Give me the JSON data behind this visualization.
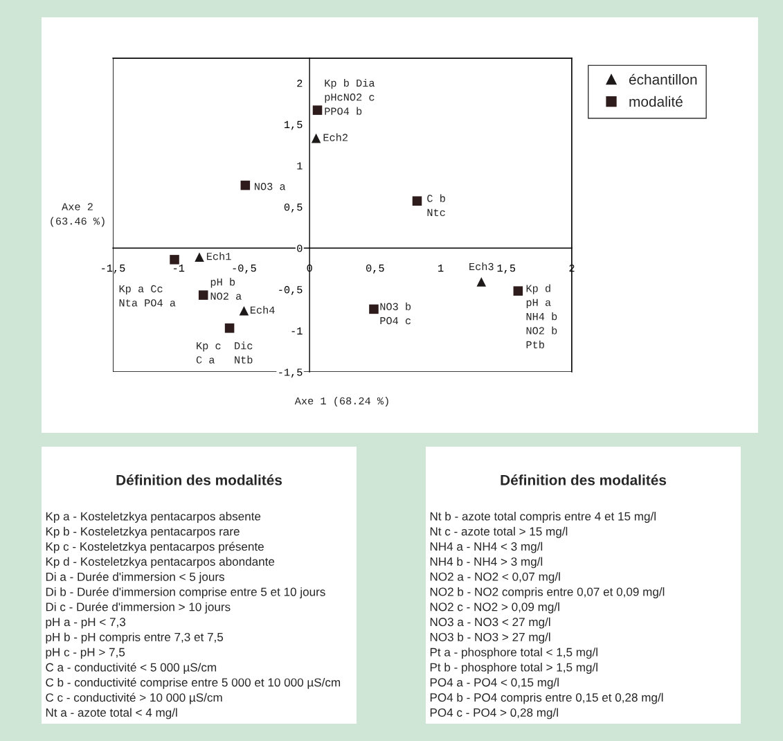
{
  "chart_data": [
    {
      "type": "scatter",
      "xlabel": "Axe 1 (68.24 %)",
      "ylabel": "Axe 2\n(63.46 %)",
      "xlim": [
        -1.5,
        2
      ],
      "ylim": [
        -1.5,
        2.3
      ],
      "xticks": [
        {
          "value": -1.5,
          "label": "-1,5"
        },
        {
          "value": -1,
          "label": "-1"
        },
        {
          "value": -0.5,
          "label": "-0,5"
        },
        0,
        {
          "value": 0.5,
          "label": "0,5"
        },
        1,
        {
          "value": 1.5,
          "label": "1,5"
        },
        2
      ],
      "yticks": [
        {
          "value": -1.5,
          "label": "-1,5"
        },
        -1,
        {
          "value": -0.5,
          "label": "-0,5"
        },
        0,
        {
          "value": 0.5,
          "label": "0,5"
        },
        1,
        {
          "value": 1.5,
          "label": "1,5"
        },
        2
      ],
      "grid": false,
      "legend": "top right",
      "series": [
        {
          "name": "échantillon",
          "color": "#1e1a1a",
          "marker": "triangle",
          "x": [
            0.05,
            -0.84,
            -0.5,
            1.31
          ],
          "values": [
            1.33,
            -0.11,
            -0.76,
            -0.41
          ]
        },
        {
          "name": "modalité",
          "color": "#2e1c1c",
          "marker": "square",
          "x": [
            0.06,
            -0.49,
            0.82,
            -1.03,
            -0.81,
            -0.61,
            0.49,
            1.59
          ],
          "values": [
            1.67,
            0.76,
            0.57,
            -0.14,
            -0.57,
            -0.97,
            -0.74,
            -0.52
          ]
        }
      ],
      "annotations": [
        {
          "text": "Kp b Dia\npHcNO2 c\nPPO4 b",
          "x": 0.06,
          "y": 1.67
        },
        {
          "text": "Ech2",
          "x": 0.05,
          "y": 1.33
        },
        {
          "text": "NO3 a",
          "x": -0.49,
          "y": 0.76
        },
        {
          "text": "C b\nNtc",
          "x": 0.82,
          "y": 0.57
        },
        {
          "text": "Ech1",
          "x": -0.84,
          "y": -0.11
        },
        {
          "text": "Kp a Cc\nNta PO4 a",
          "x": -1.03,
          "y": -0.14
        },
        {
          "text": "pH b\nNO2 a",
          "x": -0.81,
          "y": -0.57
        },
        {
          "text": "Ech4",
          "x": -0.5,
          "y": -0.76
        },
        {
          "text": "Kp c  Dic\nC a   Ntb",
          "x": -0.61,
          "y": -0.97
        },
        {
          "text": "NO3 b\nPO4 c",
          "x": 0.49,
          "y": -0.74
        },
        {
          "text": "Ech3",
          "x": 1.31,
          "y": -0.41
        },
        {
          "text": "Kp d\npH a\nNH4 b\nNO2 b\nPtb",
          "x": 1.59,
          "y": -0.52
        }
      ]
    },
    {
      "type": "other",
      "title": "Définition des modalités",
      "annotations": [
        "Kp a - Kosteletzkya pentacarpos absente",
        "Kp b - Kosteletzkya pentacarpos rare",
        "Kp c - Kosteletzkya pentacarpos présente",
        "Kp d - Kosteletzkya pentacarpos abondante",
        "Di a - Durée d'immersion < 5 jours",
        "Di b - Durée d'immersion comprise entre 5 et 10 jours",
        "Di c - Durée d'immersion > 10 jours",
        "pH a - pH < 7,3",
        "pH b - pH compris entre 7,3 et 7,5",
        "pH c - pH > 7,5",
        "C a - conductivité < 5 000 µS/cm",
        "C b - conductivité comprise entre 5 000 et 10 000 µS/cm",
        "C c - conductivité > 10 000 µS/cm",
        "Nt a - azote total < 4 mg/l"
      ]
    },
    {
      "type": "other",
      "title": "Définition des modalités",
      "annotations": [
        "Nt b - azote total compris entre 4 et 15 mg/l",
        "Nt c - azote total > 15 mg/l",
        "NH4 a - NH4 < 3 mg/l",
        "NH4 b - NH4 > 3 mg/l",
        "NO2 a - NO2 < 0,07 mg/l",
        "NO2 b - NO2 compris entre 0,07 et 0,09 mg/l",
        "NO2 c - NO2 > 0,09 mg/l",
        "NO3 a - NO3 < 27 mg/l",
        "NO3 b - NO3 > 27 mg/l",
        "Pt a - phosphore total < 1,5 mg/l",
        "Pt b - phosphore total > 1,5 mg/l",
        "PO4 a - PO4 < 0,15 mg/l",
        "PO4 b - PO4 compris entre 0,15 et 0,28 mg/l",
        "PO4 c - PO4 > 0,28 mg/l"
      ]
    }
  ]
}
